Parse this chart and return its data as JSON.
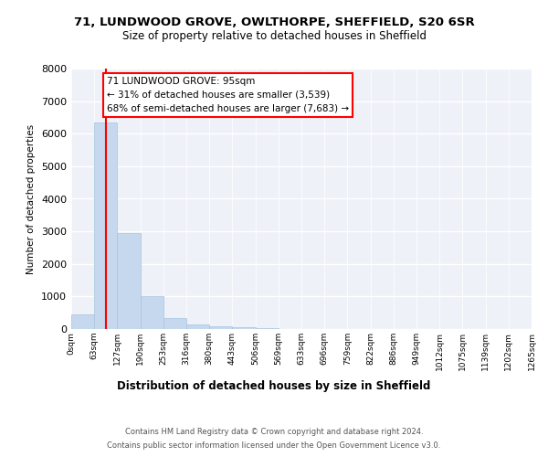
{
  "title1": "71, LUNDWOOD GROVE, OWLTHORPE, SHEFFIELD, S20 6SR",
  "title2": "Size of property relative to detached houses in Sheffield",
  "xlabel": "Distribution of detached houses by size in Sheffield",
  "ylabel": "Number of detached properties",
  "bar_color": "#c5d8ed",
  "bar_edge_color": "#a8c4de",
  "vline_color": "red",
  "annotation_text": "71 LUNDWOOD GROVE: 95sqm\n← 31% of detached houses are smaller (3,539)\n68% of semi-detached houses are larger (7,683) →",
  "bin_labels": [
    "0sqm",
    "63sqm",
    "127sqm",
    "190sqm",
    "253sqm",
    "316sqm",
    "380sqm",
    "443sqm",
    "506sqm",
    "569sqm",
    "633sqm",
    "696sqm",
    "759sqm",
    "822sqm",
    "886sqm",
    "949sqm",
    "1012sqm",
    "1075sqm",
    "1139sqm",
    "1202sqm",
    "1265sqm"
  ],
  "bar_heights": [
    450,
    6350,
    2950,
    1000,
    350,
    130,
    80,
    55,
    30,
    0,
    0,
    0,
    0,
    0,
    0,
    0,
    0,
    0,
    0,
    0
  ],
  "ylim": [
    0,
    8000
  ],
  "yticks": [
    0,
    1000,
    2000,
    3000,
    4000,
    5000,
    6000,
    7000,
    8000
  ],
  "footer_line1": "Contains HM Land Registry data © Crown copyright and database right 2024.",
  "footer_line2": "Contains public sector information licensed under the Open Government Licence v3.0.",
  "background_color": "#eef2f8",
  "vline_pos": 1.5
}
